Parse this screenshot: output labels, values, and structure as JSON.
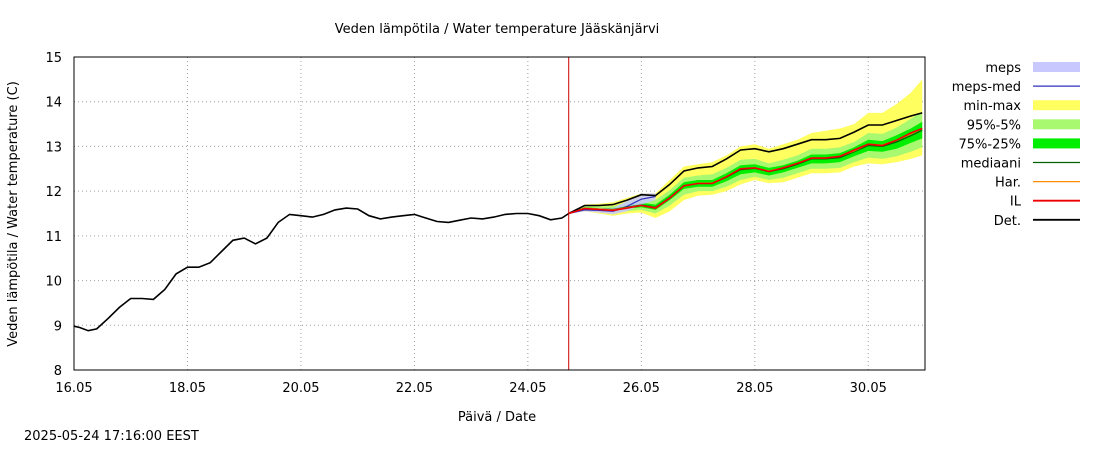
{
  "footer": {
    "timestamp": "2025-05-24 17:16:00 EEST"
  },
  "chart_data": {
    "type": "line",
    "title": "Veden lämpötila / Water temperature Jääskänjärvi",
    "xlabel": "Päivä / Date",
    "ylabel": "Veden lämpötila / Water temperature (C)",
    "xlim": [
      16.0,
      31.0
    ],
    "ylim": [
      8,
      15
    ],
    "x_ticks": [
      {
        "value": 16,
        "label": "16.05"
      },
      {
        "value": 18,
        "label": "18.05"
      },
      {
        "value": 20,
        "label": "20.05"
      },
      {
        "value": 22,
        "label": "22.05"
      },
      {
        "value": 24,
        "label": "24.05"
      },
      {
        "value": 26,
        "label": "26.05"
      },
      {
        "value": 28,
        "label": "28.05"
      },
      {
        "value": 30,
        "label": "30.05"
      }
    ],
    "y_ticks": [
      8,
      9,
      10,
      11,
      12,
      13,
      14,
      15
    ],
    "grid": true,
    "legend_position": "right",
    "forecast_start": 24.72,
    "colors": {
      "meps": "#c8c8ff",
      "meps_med": "#3030c0",
      "min_max": "#ffff60",
      "p95_5": "#a8f870",
      "p75_25": "#00ee00",
      "mediaani": "#006400",
      "har": "#ff8c00",
      "il": "#ee0000",
      "det": "#000000",
      "forecast_line": "#cc0000"
    },
    "legend": [
      {
        "key": "meps",
        "label": "meps",
        "kind": "band"
      },
      {
        "key": "meps_med",
        "label": "meps-med",
        "kind": "line"
      },
      {
        "key": "min_max",
        "label": "min-max",
        "kind": "band"
      },
      {
        "key": "p95_5",
        "label": "95%-5%",
        "kind": "band"
      },
      {
        "key": "p75_25",
        "label": "75%-25%",
        "kind": "band"
      },
      {
        "key": "mediaani",
        "label": "mediaani",
        "kind": "line"
      },
      {
        "key": "har",
        "label": "Har.",
        "kind": "line"
      },
      {
        "key": "il",
        "label": "IL",
        "kind": "line"
      },
      {
        "key": "det",
        "label": "Det.",
        "kind": "line"
      }
    ],
    "observed": {
      "x": [
        16.0,
        16.1,
        16.25,
        16.4,
        16.6,
        16.8,
        17.0,
        17.2,
        17.4,
        17.6,
        17.8,
        18.0,
        18.2,
        18.4,
        18.6,
        18.8,
        19.0,
        19.2,
        19.4,
        19.6,
        19.8,
        20.0,
        20.2,
        20.4,
        20.6,
        20.8,
        21.0,
        21.2,
        21.4,
        21.6,
        21.8,
        22.0,
        22.2,
        22.4,
        22.6,
        22.8,
        23.0,
        23.2,
        23.4,
        23.6,
        23.8,
        24.0,
        24.2,
        24.4,
        24.6,
        24.72
      ],
      "y": [
        8.98,
        8.95,
        8.88,
        8.92,
        9.15,
        9.4,
        9.6,
        9.6,
        9.58,
        9.8,
        10.15,
        10.3,
        10.3,
        10.4,
        10.65,
        10.9,
        10.95,
        10.82,
        10.95,
        11.3,
        11.48,
        11.45,
        11.42,
        11.48,
        11.58,
        11.62,
        11.6,
        11.45,
        11.38,
        11.42,
        11.45,
        11.48,
        11.4,
        11.32,
        11.3,
        11.35,
        11.4,
        11.38,
        11.42,
        11.48,
        11.5,
        11.5,
        11.45,
        11.36,
        11.4,
        11.5
      ]
    },
    "forecast_x": [
      24.72,
      25.0,
      25.25,
      25.5,
      25.75,
      26.0,
      26.25,
      26.5,
      26.75,
      27.0,
      27.25,
      27.5,
      27.75,
      28.0,
      28.25,
      28.5,
      28.75,
      29.0,
      29.25,
      29.5,
      29.75,
      30.0,
      30.25,
      30.5,
      30.75,
      30.95
    ],
    "series": [
      {
        "key": "min_max",
        "low": [
          11.5,
          11.55,
          11.5,
          11.45,
          11.5,
          11.52,
          11.4,
          11.55,
          11.8,
          11.9,
          11.92,
          12.0,
          12.15,
          12.25,
          12.18,
          12.2,
          12.3,
          12.4,
          12.4,
          12.42,
          12.55,
          12.62,
          12.6,
          12.65,
          12.72,
          12.8
        ],
        "high": [
          11.5,
          11.7,
          11.72,
          11.75,
          11.85,
          11.95,
          11.95,
          12.25,
          12.55,
          12.6,
          12.65,
          12.8,
          13.0,
          13.05,
          12.95,
          13.05,
          13.15,
          13.3,
          13.35,
          13.4,
          13.5,
          13.75,
          13.75,
          13.95,
          14.2,
          14.5
        ]
      },
      {
        "key": "p95_5",
        "low": [
          11.5,
          11.58,
          11.55,
          11.52,
          11.55,
          11.58,
          11.5,
          11.68,
          11.92,
          12.0,
          12.0,
          12.1,
          12.25,
          12.32,
          12.25,
          12.3,
          12.4,
          12.5,
          12.5,
          12.52,
          12.65,
          12.75,
          12.72,
          12.78,
          12.88,
          12.98
        ],
        "high": [
          11.5,
          11.66,
          11.66,
          11.66,
          11.75,
          11.82,
          11.8,
          12.02,
          12.3,
          12.35,
          12.38,
          12.52,
          12.7,
          12.72,
          12.62,
          12.7,
          12.8,
          12.95,
          12.95,
          12.98,
          13.1,
          13.3,
          13.28,
          13.42,
          13.62,
          13.78
        ]
      },
      {
        "key": "p75_25",
        "low": [
          11.5,
          11.6,
          11.58,
          11.56,
          11.6,
          11.64,
          11.58,
          11.8,
          12.05,
          12.1,
          12.1,
          12.22,
          12.38,
          12.42,
          12.35,
          12.42,
          12.52,
          12.62,
          12.62,
          12.65,
          12.78,
          12.9,
          12.88,
          12.95,
          13.08,
          13.18
        ],
        "high": [
          11.5,
          11.64,
          11.62,
          11.62,
          11.68,
          11.74,
          11.7,
          11.92,
          12.2,
          12.25,
          12.25,
          12.4,
          12.58,
          12.6,
          12.52,
          12.58,
          12.68,
          12.82,
          12.82,
          12.85,
          12.98,
          13.15,
          13.12,
          13.25,
          13.4,
          13.55
        ]
      },
      {
        "key": "meps",
        "low": [
          11.5,
          11.55,
          11.52,
          11.48,
          11.55,
          11.7,
          11.8
        ],
        "high": [
          11.5,
          11.62,
          11.62,
          11.62,
          11.78,
          11.95,
          11.95
        ],
        "x": [
          24.72,
          25.0,
          25.25,
          25.5,
          25.75,
          26.0,
          26.25
        ]
      },
      {
        "key": "meps_med",
        "values": [
          11.5,
          11.58,
          11.57,
          11.55,
          11.66,
          11.82,
          11.88
        ],
        "x": [
          24.72,
          25.0,
          25.25,
          25.5,
          25.75,
          26.0,
          26.25
        ]
      },
      {
        "key": "mediaani",
        "values": [
          11.5,
          11.62,
          11.6,
          11.59,
          11.64,
          11.69,
          11.64,
          11.86,
          12.12,
          12.18,
          12.18,
          12.31,
          12.48,
          12.51,
          12.44,
          12.5,
          12.6,
          12.72,
          12.72,
          12.75,
          12.88,
          13.02,
          13.0,
          13.1,
          13.24,
          13.36
        ]
      },
      {
        "key": "har",
        "values": [
          11.5,
          11.62,
          11.6,
          11.58,
          11.63,
          11.68,
          11.63,
          11.85,
          12.12,
          12.18,
          12.18,
          12.32,
          12.5,
          12.52,
          12.45,
          12.52,
          12.62,
          12.74,
          12.74,
          12.78,
          12.9,
          13.05,
          13.03,
          13.14,
          13.28,
          13.4
        ]
      },
      {
        "key": "il",
        "values": [
          11.5,
          11.61,
          11.59,
          11.57,
          11.62,
          11.68,
          11.62,
          11.84,
          12.12,
          12.17,
          12.17,
          12.32,
          12.5,
          12.52,
          12.44,
          12.52,
          12.62,
          12.74,
          12.74,
          12.78,
          12.92,
          13.05,
          13.02,
          13.14,
          13.3,
          13.4
        ]
      },
      {
        "key": "det",
        "values": [
          11.5,
          11.68,
          11.68,
          11.7,
          11.8,
          11.92,
          11.9,
          12.15,
          12.45,
          12.52,
          12.55,
          12.72,
          12.92,
          12.95,
          12.88,
          12.95,
          13.05,
          13.15,
          13.15,
          13.18,
          13.32,
          13.48,
          13.48,
          13.58,
          13.68,
          13.75
        ]
      }
    ]
  }
}
